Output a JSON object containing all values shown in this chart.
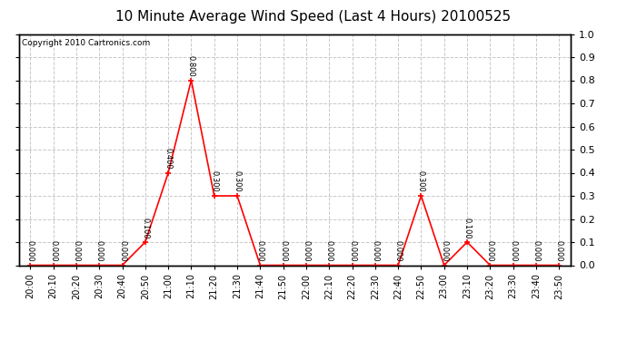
{
  "title": "10 Minute Average Wind Speed (Last 4 Hours) 20100525",
  "copyright": "Copyright 2010 Cartronics.com",
  "x_labels": [
    "20:00",
    "20:10",
    "20:20",
    "20:30",
    "20:40",
    "20:50",
    "21:00",
    "21:10",
    "21:20",
    "21:30",
    "21:40",
    "21:50",
    "22:00",
    "22:10",
    "22:20",
    "22:30",
    "22:40",
    "22:50",
    "23:00",
    "23:10",
    "23:20",
    "23:30",
    "23:40",
    "23:50"
  ],
  "y_values": [
    0.0,
    0.0,
    0.0,
    0.0,
    0.0,
    0.1,
    0.4,
    0.8,
    0.3,
    0.3,
    0.0,
    0.0,
    0.0,
    0.0,
    0.0,
    0.0,
    0.0,
    0.3,
    0.0,
    0.1,
    0.0,
    0.0,
    0.0,
    0.0
  ],
  "line_color": "#ff0000",
  "marker_color": "#ff0000",
  "bg_color": "#ffffff",
  "grid_color": "#c8c8c8",
  "title_fontsize": 11,
  "ylim": [
    0.0,
    1.0
  ],
  "yticks": [
    0.0,
    0.1,
    0.2,
    0.3,
    0.4,
    0.5,
    0.6,
    0.7,
    0.8,
    0.9,
    1.0
  ],
  "annotation_fontsize": 6,
  "tick_fontsize": 7,
  "copyright_fontsize": 6.5
}
